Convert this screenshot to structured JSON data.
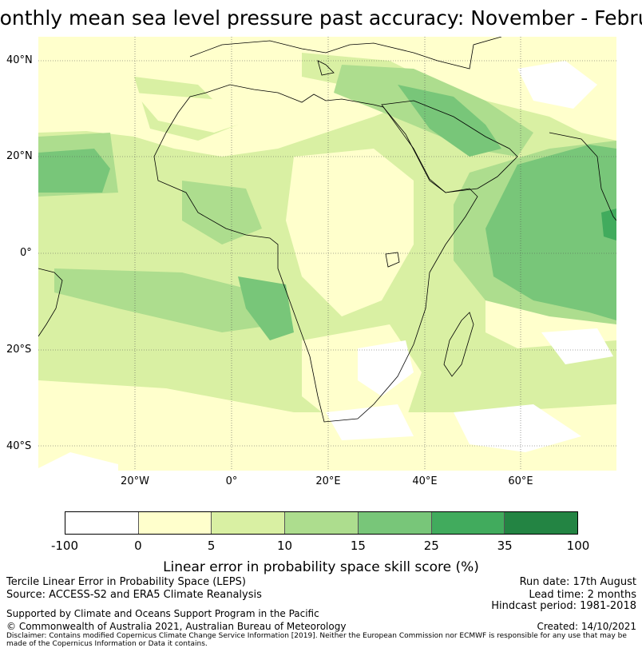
{
  "title": "Monthly mean sea level pressure past accuracy: November - February",
  "map": {
    "lat_labels": [
      "40°N",
      "20°N",
      "0°",
      "20°S",
      "40°S"
    ],
    "lon_labels": [
      "20°W",
      "0°",
      "20°E",
      "40°E",
      "60°E"
    ]
  },
  "colorbar": {
    "label": "Linear error in probability space skill score (%)",
    "ticks": [
      "-100",
      "0",
      "5",
      "10",
      "15",
      "25",
      "35",
      "100"
    ],
    "colors": [
      "#ffffff",
      "#ffffcc",
      "#d9f0a3",
      "#addd8e",
      "#78c679",
      "#41ab5d",
      "#238443"
    ]
  },
  "footer": {
    "left_line1": "Tercile Linear Error in Probability Space (LEPS)",
    "left_line2": "Source: ACCESS-S2 and ERA5 Climate Reanalysis",
    "supported": "Supported by Climate and Oceans Support Program in the Pacific",
    "copyright": "© Commonwealth of Australia 2021, Australian Bureau of Meteorology",
    "disclaimer": "Disclaimer: Contains modified Copernicus Climate Change Service Information [2019]. Neither the European Commission nor ECMWF is responsible for any use that may be made of the Copernicus Information or Data it contains.",
    "run_date": "Run date: 17th August",
    "lead_time": "Lead time: 2 months",
    "hindcast": "Hindcast period: 1981-2018",
    "created": "Created: 14/10/2021"
  }
}
